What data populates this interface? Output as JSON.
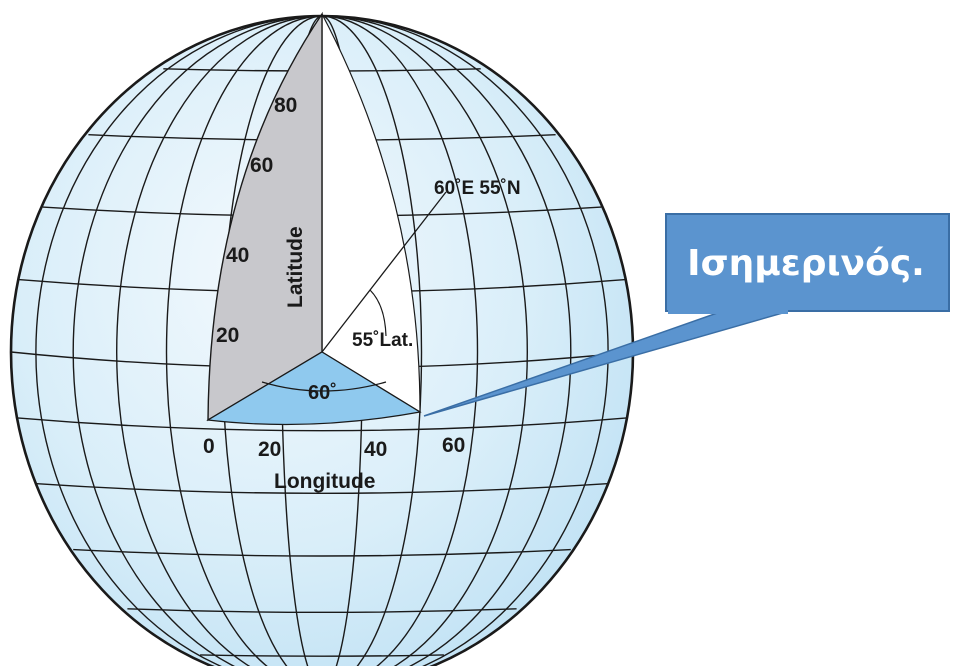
{
  "diagram": {
    "labels": {
      "lat_80": "80",
      "lat_60": "60",
      "lat_40": "40",
      "lat_20": "20",
      "latitude_axis": "Latitude",
      "point": "60˚E 55˚N",
      "lat_angle": "55˚Lat.",
      "lon_angle": "60˚",
      "lon_0": "0",
      "lon_20": "20",
      "lon_40": "40",
      "lon_60": "60",
      "longitude_axis": "Longitude"
    },
    "callout": {
      "text": "Ισημερινός."
    },
    "colors": {
      "globe_fill": "#d7ecf8",
      "grid_line": "#1a1a1a",
      "latitude_plane": "#c8c8cc",
      "equator_sector": "#8fc9ee",
      "callout_fill": "#5b94cf",
      "callout_border": "#3a6ea5"
    }
  }
}
